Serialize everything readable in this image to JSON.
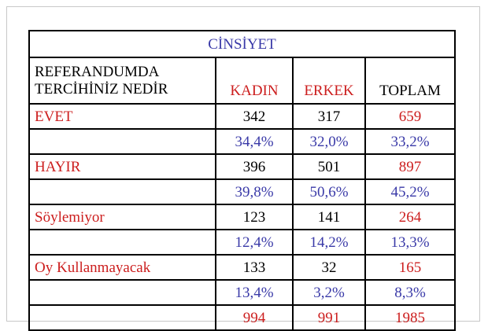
{
  "table": {
    "title": "CİNSİYET",
    "header": {
      "question_line1": "REFERANDUMDA",
      "question_line2": "TERCİHİNİZ NEDİR",
      "col_kadin": "KADIN",
      "col_erkek": "ERKEK",
      "col_toplam": "TOPLAM"
    },
    "rows": [
      {
        "label": "EVET",
        "kadin": "342",
        "erkek": "317",
        "toplam": "659",
        "kadin_pct": "34,4%",
        "erkek_pct": "32,0%",
        "toplam_pct": "33,2%"
      },
      {
        "label": "HAYIR",
        "kadin": "396",
        "erkek": "501",
        "toplam": "897",
        "kadin_pct": "39,8%",
        "erkek_pct": "50,6%",
        "toplam_pct": "45,2%"
      },
      {
        "label": "Söylemiyor",
        "kadin": "123",
        "erkek": "141",
        "toplam": "264",
        "kadin_pct": "12,4%",
        "erkek_pct": "14,2%",
        "toplam_pct": "13,3%"
      },
      {
        "label": "Oy Kullanmayacak",
        "kadin": "133",
        "erkek": "32",
        "toplam": "165",
        "kadin_pct": "13,4%",
        "erkek_pct": "3,2%",
        "toplam_pct": "8,3%"
      }
    ],
    "totals": {
      "kadin": "994",
      "erkek": "991",
      "toplam": "1985"
    }
  }
}
